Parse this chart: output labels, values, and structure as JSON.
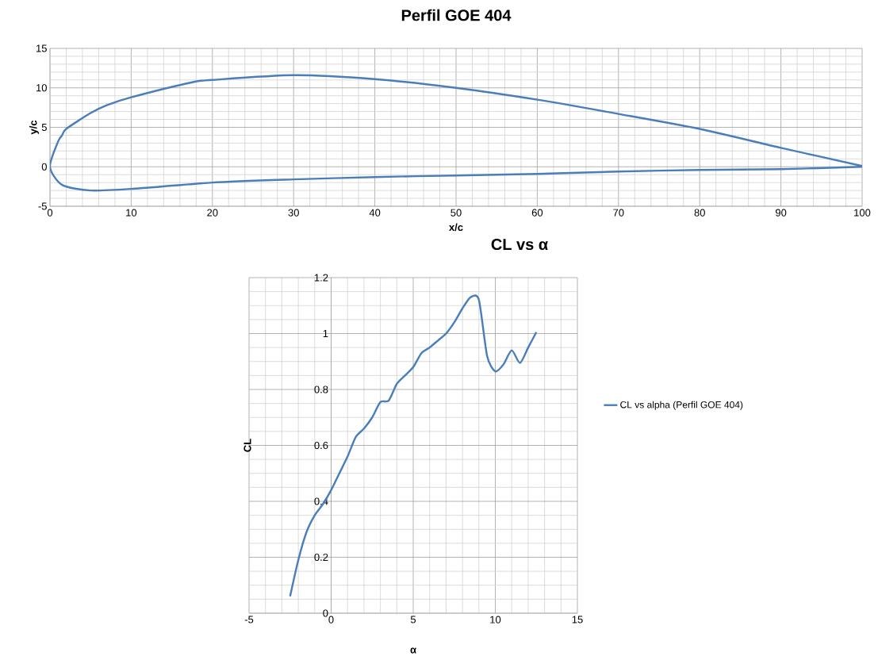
{
  "chart_data": [
    {
      "type": "line",
      "title": "Perfil GOE 404",
      "xlabel": "x/c",
      "ylabel": "y/c",
      "x": [
        100,
        90,
        80,
        70,
        60,
        50,
        40,
        30,
        20,
        17.5,
        10,
        7,
        5,
        2,
        1.5,
        1,
        0,
        1.5,
        5,
        10,
        20,
        30,
        40,
        50,
        60,
        70,
        80,
        90,
        100
      ],
      "series": [
        {
          "color": "#4a7ebb",
          "values": [
            0.1,
            2.4,
            4.8,
            6.7,
            8.5,
            10.0,
            11.1,
            11.6,
            11.0,
            10.7,
            8.8,
            7.8,
            6.8,
            4.8,
            4.0,
            3.2,
            0,
            -2.3,
            -3.0,
            -2.8,
            -2.0,
            -1.6,
            -1.3,
            -1.1,
            -0.9,
            -0.6,
            -0.4,
            -0.3,
            0
          ]
        }
      ],
      "xlim": [
        0,
        100
      ],
      "ylim": [
        -5,
        15
      ],
      "xticks": [
        0,
        10,
        20,
        30,
        40,
        50,
        60,
        70,
        80,
        90,
        100
      ],
      "yticks": [
        -5,
        0,
        5,
        10,
        15
      ],
      "grid": true,
      "legend": false,
      "marker": "none"
    },
    {
      "type": "line",
      "title": "CL vs α",
      "xlabel": "α",
      "ylabel": "CL",
      "x": [
        -2.5,
        -2,
        -1.5,
        -1,
        -0.5,
        0,
        0.5,
        1,
        1.5,
        2,
        2.5,
        3,
        3.5,
        4,
        4.5,
        5,
        5.5,
        6,
        6.5,
        7,
        7.5,
        8,
        8.5,
        9,
        9.5,
        10,
        10.5,
        11,
        11.5,
        12,
        12.5
      ],
      "series": [
        {
          "name": "CL vs alpha (Perfil GOE 404)",
          "color": "#4a7ebb",
          "values": [
            0.06,
            0.19,
            0.29,
            0.35,
            0.39,
            0.44,
            0.5,
            0.56,
            0.63,
            0.66,
            0.7,
            0.755,
            0.76,
            0.82,
            0.85,
            0.88,
            0.93,
            0.95,
            0.975,
            1.0,
            1.04,
            1.09,
            1.13,
            1.12,
            0.92,
            0.865,
            0.89,
            0.94,
            0.895,
            0.95,
            1.005
          ]
        }
      ],
      "xlim": [
        -5,
        15
      ],
      "ylim": [
        0,
        1.2
      ],
      "xticks": [
        -5,
        0,
        5,
        10,
        15
      ],
      "yticks": [
        0,
        0.2,
        0.4,
        0.6,
        0.8,
        1,
        1.2
      ],
      "grid": true,
      "legend": "right",
      "marker": "none"
    }
  ]
}
